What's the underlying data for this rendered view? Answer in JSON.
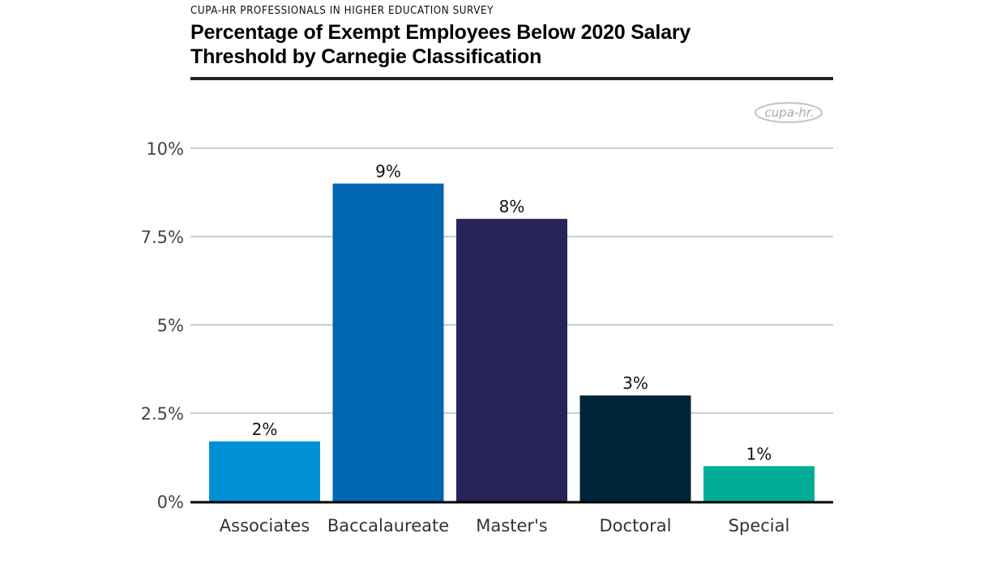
{
  "header": {
    "kicker": "CUPA-HR PROFESSIONALS IN HIGHER EDUCATION SURVEY",
    "title_line1": "Percentage of Exempt Employees Below 2020 Salary",
    "title_line2": "Threshold by Carnegie Classification"
  },
  "logo": {
    "text": "cupa-hr.",
    "icon": "cupa-hr-logo"
  },
  "chart_data": {
    "type": "bar",
    "title": "Percentage of Exempt Employees Below 2020 Salary Threshold by Carnegie Classification",
    "subtitle": "CUPA-HR PROFESSIONALS IN HIGHER EDUCATION SURVEY",
    "xlabel": "",
    "ylabel": "",
    "categories": [
      "Associates",
      "Baccalaureate",
      "Master's",
      "Doctoral",
      "Special"
    ],
    "values": [
      1.7,
      9.0,
      8.0,
      3.0,
      1.0
    ],
    "data_labels": [
      "2%",
      "9%",
      "8%",
      "3%",
      "1%"
    ],
    "colors": [
      "#0090D5",
      "#0066B2",
      "#262459",
      "#002438",
      "#00AE98"
    ],
    "ylim": [
      0,
      10
    ],
    "yticks": [
      0,
      2.5,
      5,
      7.5,
      10
    ],
    "ytick_labels": [
      "0%",
      "2.5%",
      "5%",
      "7.5%",
      "10%"
    ],
    "grid": true,
    "legend": "none"
  }
}
